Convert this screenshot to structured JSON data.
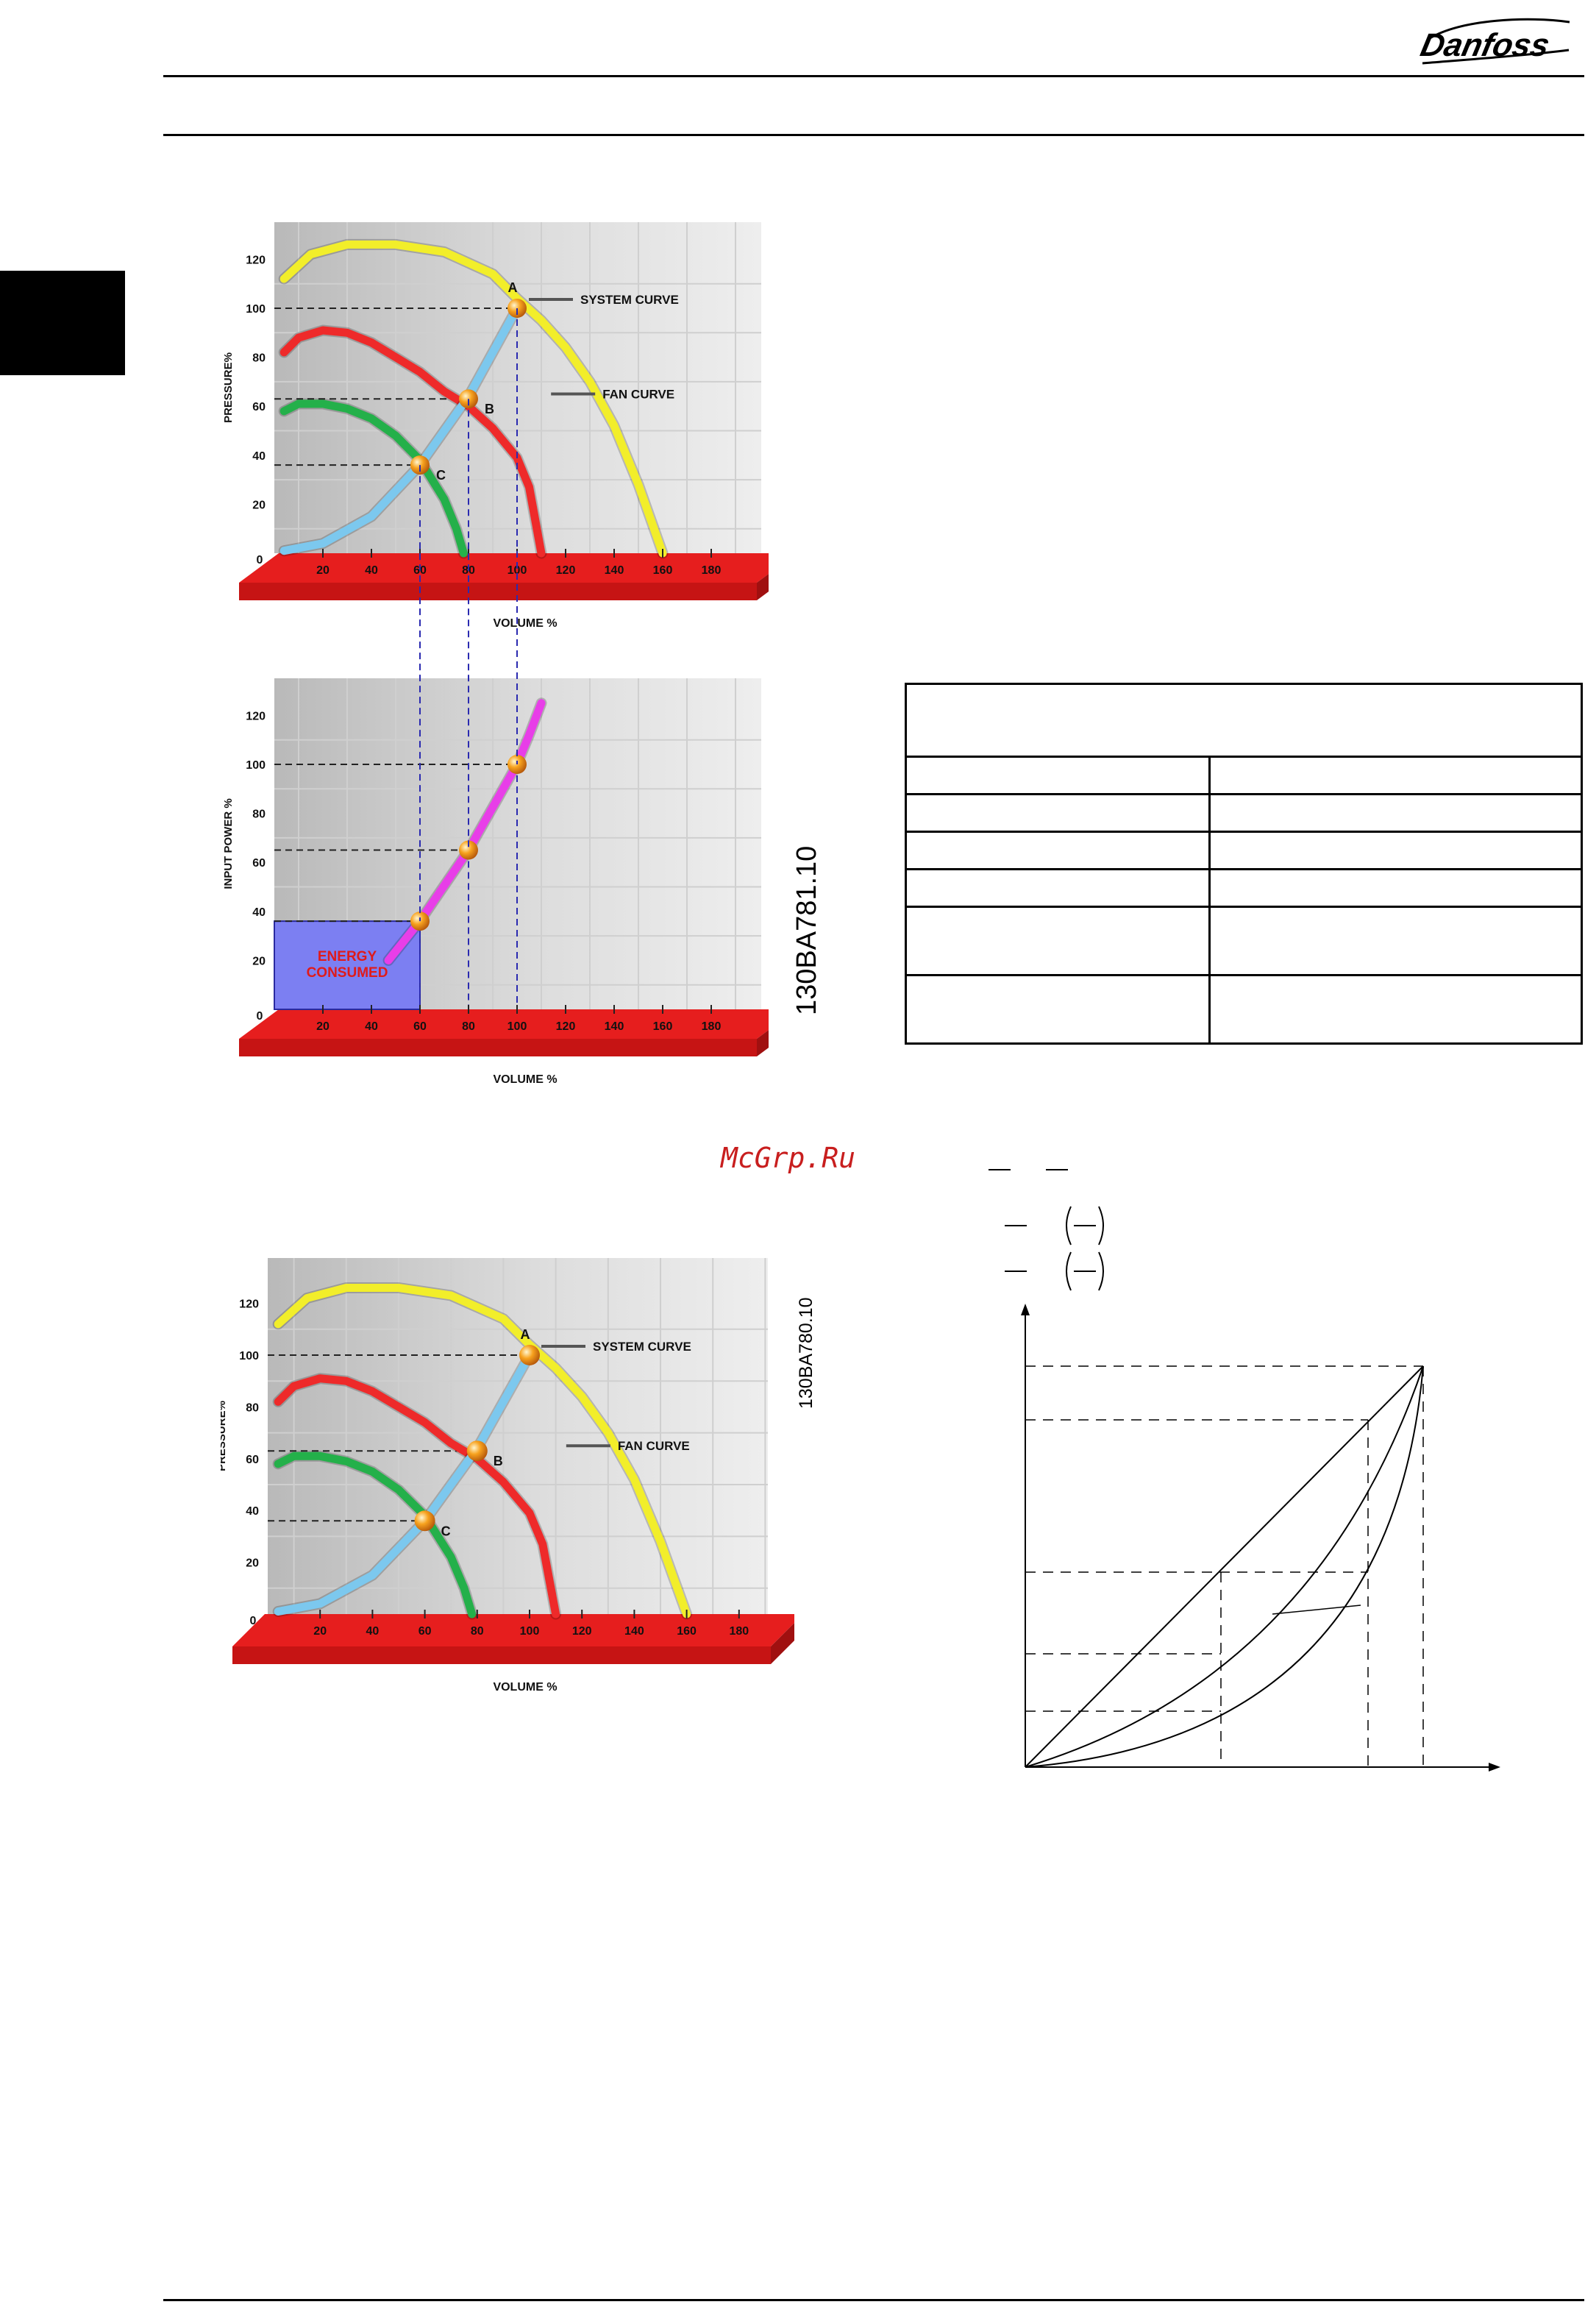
{
  "header": {
    "brand": "Danfoss"
  },
  "watermark": "McGrp.Ru",
  "colors": {
    "fan_outer": "#f2ee2a",
    "fan_mid": "#ee2a2a",
    "fan_inner": "#24b04a",
    "system": "#7cc8ee",
    "power": "#e83ee8",
    "base": "#e61e1e",
    "point": "#f7a21e",
    "energy": "#7c7ff2"
  },
  "figures": [
    {
      "id": "130BA781.10",
      "doc_number": "130BA781.10",
      "chart_data": [
        {
          "type": "line",
          "ylabel": "PRESSURE%",
          "xlabel": "VOLUME %",
          "x_ticks": [
            "0",
            "20",
            "40",
            "60",
            "80",
            "100",
            "120",
            "140",
            "160",
            "180"
          ],
          "y_ticks": [
            "20",
            "40",
            "60",
            "80",
            "100",
            "120"
          ],
          "xlim": [
            0,
            200
          ],
          "ylim": [
            0,
            130
          ],
          "annotations": [
            "SYSTEM CURVE",
            "FAN CURVE"
          ],
          "point_labels": [
            "A",
            "B",
            "C"
          ],
          "series": [
            {
              "color": "#f2ee2a",
              "x": [
                4,
                15,
                30,
                50,
                70,
                90,
                100,
                110,
                120,
                130,
                140,
                150,
                160
              ],
              "y": [
                112,
                122,
                126,
                126,
                123,
                114,
                104,
                95,
                84,
                70,
                52,
                28,
                0
              ]
            },
            {
              "color": "#ee2a2a",
              "x": [
                4,
                10,
                20,
                30,
                40,
                50,
                60,
                70,
                80,
                90,
                100,
                105,
                110
              ],
              "y": [
                82,
                88,
                91,
                90,
                86,
                80,
                74,
                66,
                60,
                51,
                39,
                27,
                0
              ]
            },
            {
              "color": "#24b04a",
              "x": [
                4,
                10,
                20,
                30,
                40,
                50,
                60,
                70,
                75,
                78
              ],
              "y": [
                58,
                61,
                61,
                59,
                55,
                48,
                38,
                22,
                10,
                0
              ]
            },
            {
              "color": "#7cc8ee",
              "x": [
                4,
                20,
                40,
                60,
                80,
                100
              ],
              "y": [
                1,
                4,
                15,
                36,
                64,
                100
              ]
            }
          ],
          "points": [
            {
              "label": "A",
              "x": 100,
              "y": 100
            },
            {
              "label": "B",
              "x": 80,
              "y": 63
            },
            {
              "label": "C",
              "x": 60,
              "y": 36
            }
          ]
        },
        {
          "type": "line",
          "ylabel": "INPUT POWER %",
          "xlabel": "VOLUME %",
          "x_ticks": [
            "0",
            "20",
            "40",
            "60",
            "80",
            "100",
            "120",
            "140",
            "160",
            "180"
          ],
          "y_ticks": [
            "20",
            "40",
            "60",
            "80",
            "100",
            "120"
          ],
          "xlim": [
            0,
            200
          ],
          "ylim": [
            0,
            130
          ],
          "energy_label": [
            "ENERGY",
            "CONSUMED"
          ],
          "energy_area": {
            "x": [
              0,
              60
            ],
            "y": [
              0,
              36
            ]
          },
          "series": [
            {
              "color": "#e83ee8",
              "x": [
                47,
                60,
                80,
                100,
                105,
                110
              ],
              "y": [
                20,
                36,
                65,
                100,
                112,
                125
              ]
            }
          ],
          "points": [
            {
              "x": 100,
              "y": 100
            },
            {
              "x": 80,
              "y": 65
            },
            {
              "x": 60,
              "y": 36
            }
          ]
        }
      ]
    },
    {
      "id": "130BA780.10",
      "doc_number": "130BA780.10",
      "chart_data": {
        "type": "line",
        "ylabel": "PRESSURE%",
        "xlabel": "VOLUME %",
        "x_ticks": [
          "0",
          "20",
          "40",
          "60",
          "80",
          "100",
          "120",
          "140",
          "160",
          "180"
        ],
        "y_ticks": [
          "20",
          "40",
          "60",
          "80",
          "100",
          "120"
        ],
        "xlim": [
          0,
          200
        ],
        "ylim": [
          0,
          130
        ],
        "annotations": [
          "SYSTEM CURVE",
          "FAN CURVE"
        ],
        "point_labels": [
          "A",
          "B",
          "C"
        ],
        "series": [
          {
            "color": "#f2ee2a",
            "x": [
              4,
              15,
              30,
              50,
              70,
              90,
              100,
              110,
              120,
              130,
              140,
              150,
              160
            ],
            "y": [
              112,
              122,
              126,
              126,
              123,
              114,
              104,
              95,
              84,
              70,
              52,
              28,
              0
            ]
          },
          {
            "color": "#ee2a2a",
            "x": [
              4,
              10,
              20,
              30,
              40,
              50,
              60,
              70,
              80,
              90,
              100,
              105,
              110
            ],
            "y": [
              82,
              88,
              91,
              90,
              86,
              80,
              74,
              66,
              60,
              51,
              39,
              27,
              0
            ]
          },
          {
            "color": "#24b04a",
            "x": [
              4,
              10,
              20,
              30,
              40,
              50,
              60,
              70,
              75,
              78
            ],
            "y": [
              58,
              61,
              61,
              59,
              55,
              48,
              38,
              22,
              10,
              0
            ]
          },
          {
            "color": "#7cc8ee",
            "x": [
              4,
              20,
              40,
              60,
              80,
              100
            ],
            "y": [
              1,
              4,
              15,
              36,
              64,
              100
            ]
          }
        ],
        "points": [
          {
            "label": "A",
            "x": 100,
            "y": 100
          },
          {
            "label": "B",
            "x": 80,
            "y": 63
          },
          {
            "label": "C",
            "x": 60,
            "y": 36
          }
        ]
      }
    }
  ],
  "table": {
    "rows": 7,
    "cols": 2
  }
}
